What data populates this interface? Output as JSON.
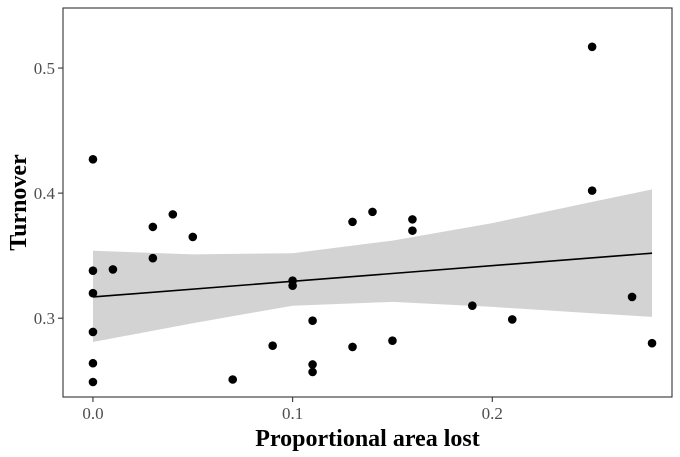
{
  "chart_data": {
    "type": "scatter",
    "title": "",
    "xlabel": "Proportional area lost",
    "ylabel": "Turnover",
    "xlim": [
      -0.015,
      0.29
    ],
    "ylim": [
      0.237,
      0.548
    ],
    "x_ticks": [
      0.0,
      0.1,
      0.2
    ],
    "x_tick_labels": [
      "0.0",
      "0.1",
      "0.2"
    ],
    "y_ticks": [
      0.3,
      0.4,
      0.5
    ],
    "y_tick_labels": [
      "0.3",
      "0.4",
      "0.5"
    ],
    "grid": false,
    "points": [
      {
        "x": 0.0,
        "y": 0.427
      },
      {
        "x": 0.0,
        "y": 0.338
      },
      {
        "x": 0.0,
        "y": 0.32
      },
      {
        "x": 0.0,
        "y": 0.289
      },
      {
        "x": 0.0,
        "y": 0.264
      },
      {
        "x": 0.0,
        "y": 0.249
      },
      {
        "x": 0.01,
        "y": 0.339
      },
      {
        "x": 0.03,
        "y": 0.373
      },
      {
        "x": 0.03,
        "y": 0.348
      },
      {
        "x": 0.04,
        "y": 0.383
      },
      {
        "x": 0.05,
        "y": 0.365
      },
      {
        "x": 0.07,
        "y": 0.251
      },
      {
        "x": 0.09,
        "y": 0.278
      },
      {
        "x": 0.1,
        "y": 0.33
      },
      {
        "x": 0.1,
        "y": 0.326
      },
      {
        "x": 0.11,
        "y": 0.298
      },
      {
        "x": 0.11,
        "y": 0.263
      },
      {
        "x": 0.11,
        "y": 0.257
      },
      {
        "x": 0.13,
        "y": 0.377
      },
      {
        "x": 0.13,
        "y": 0.277
      },
      {
        "x": 0.14,
        "y": 0.385
      },
      {
        "x": 0.15,
        "y": 0.282
      },
      {
        "x": 0.16,
        "y": 0.379
      },
      {
        "x": 0.16,
        "y": 0.37
      },
      {
        "x": 0.19,
        "y": 0.31
      },
      {
        "x": 0.21,
        "y": 0.299
      },
      {
        "x": 0.25,
        "y": 0.517
      },
      {
        "x": 0.25,
        "y": 0.402
      },
      {
        "x": 0.27,
        "y": 0.317
      },
      {
        "x": 0.28,
        "y": 0.28
      }
    ],
    "fit_line": {
      "x": [
        0.0,
        0.28
      ],
      "y": [
        0.317,
        0.352
      ]
    },
    "confidence_band": {
      "x": [
        0.0,
        0.05,
        0.1,
        0.15,
        0.2,
        0.25,
        0.28
      ],
      "upper": [
        0.354,
        0.351,
        0.352,
        0.362,
        0.376,
        0.393,
        0.403
      ],
      "lower": [
        0.281,
        0.296,
        0.31,
        0.313,
        0.309,
        0.304,
        0.301
      ]
    },
    "colors": {
      "points": "#000000",
      "line": "#000000",
      "band": "#d3d3d3",
      "panel_border": "#333333"
    }
  }
}
